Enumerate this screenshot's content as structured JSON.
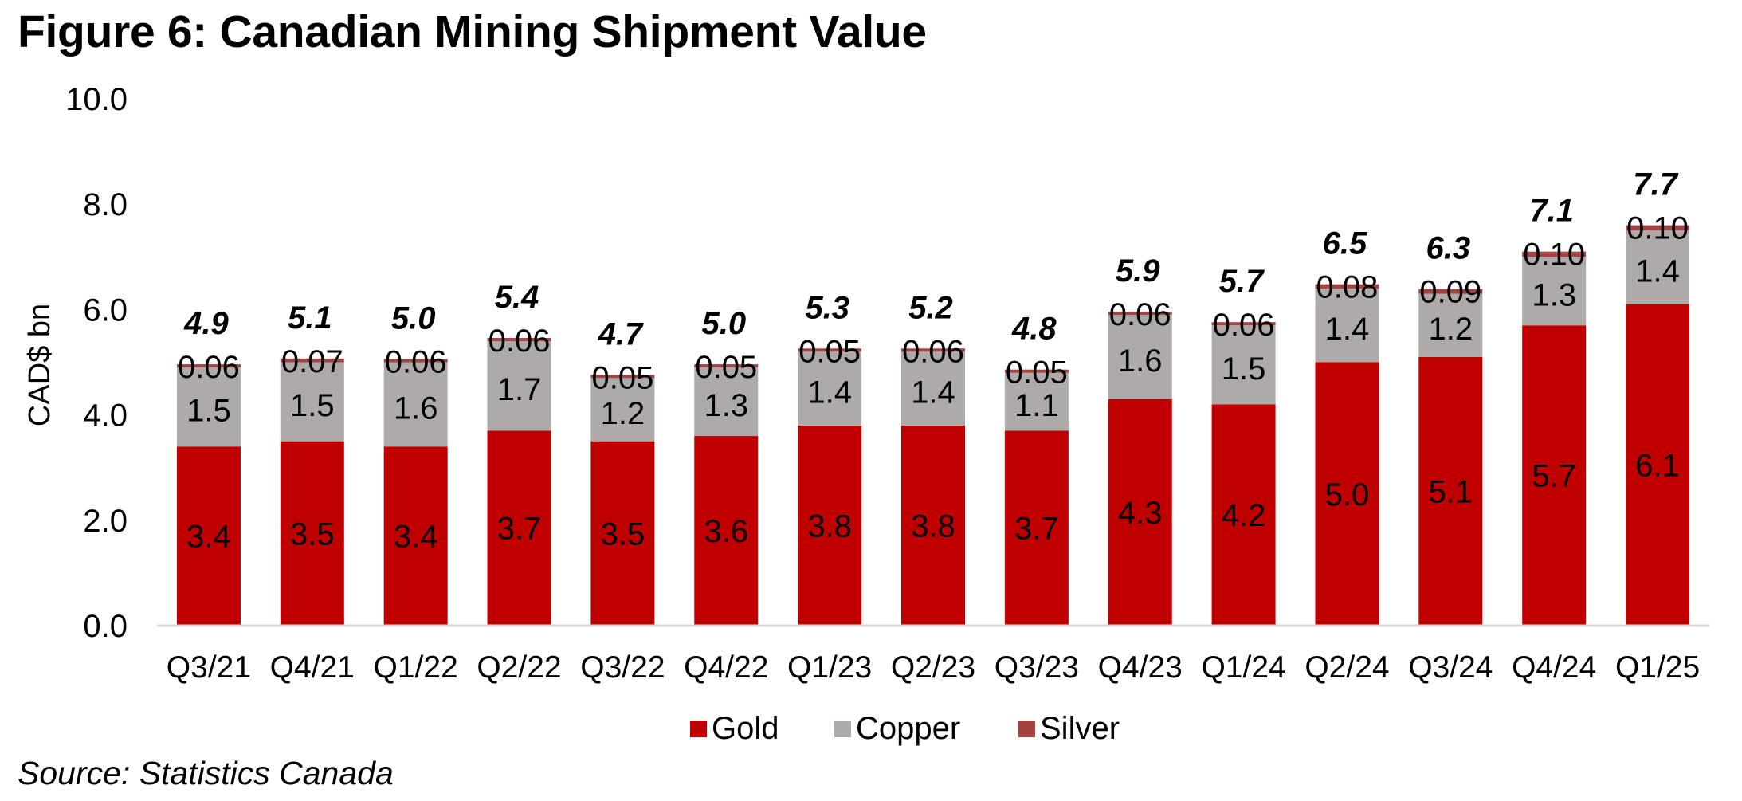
{
  "figure": {
    "title": "Figure 6: Canadian Mining Shipment Value",
    "source": "Source: Statistics Canada"
  },
  "chart_data": {
    "type": "bar",
    "stacked": true,
    "title": "Figure 6: Canadian Mining Shipment Value",
    "xlabel": "",
    "ylabel": "CAD$ bn",
    "ylim": [
      0,
      10
    ],
    "yticks": [
      0,
      2,
      4,
      6,
      8,
      10
    ],
    "ytick_labels": [
      "0.0",
      "2.0",
      "4.0",
      "6.0",
      "8.0",
      "10.0"
    ],
    "grid": false,
    "legend_position": "bottom-center",
    "categories": [
      "Q3/21",
      "Q4/21",
      "Q1/22",
      "Q2/22",
      "Q3/22",
      "Q4/22",
      "Q1/23",
      "Q2/23",
      "Q3/23",
      "Q4/23",
      "Q1/24",
      "Q2/24",
      "Q3/24",
      "Q4/24",
      "Q1/25"
    ],
    "series": [
      {
        "name": "Gold",
        "color": "#C00000",
        "values": [
          3.4,
          3.5,
          3.4,
          3.7,
          3.5,
          3.6,
          3.8,
          3.8,
          3.7,
          4.3,
          4.2,
          5.0,
          5.1,
          5.7,
          6.1
        ],
        "labels": [
          "3.4",
          "3.5",
          "3.4",
          "3.7",
          "3.5",
          "3.6",
          "3.8",
          "3.8",
          "3.7",
          "4.3",
          "4.2",
          "5.0",
          "5.1",
          "5.7",
          "6.1"
        ]
      },
      {
        "name": "Copper",
        "color": "#AEAAAA",
        "values": [
          1.5,
          1.5,
          1.6,
          1.7,
          1.2,
          1.3,
          1.4,
          1.4,
          1.1,
          1.6,
          1.5,
          1.4,
          1.2,
          1.3,
          1.4
        ],
        "labels": [
          "1.5",
          "1.5",
          "1.6",
          "1.7",
          "1.2",
          "1.3",
          "1.4",
          "1.4",
          "1.1",
          "1.6",
          "1.5",
          "1.4",
          "1.2",
          "1.3",
          "1.4"
        ]
      },
      {
        "name": "Silver",
        "color": "#A5413F",
        "values": [
          0.06,
          0.07,
          0.06,
          0.06,
          0.05,
          0.05,
          0.05,
          0.06,
          0.05,
          0.06,
          0.06,
          0.08,
          0.09,
          0.1,
          0.1
        ],
        "labels": [
          "0.06",
          "0.07",
          "0.06",
          "0.06",
          "0.05",
          "0.05",
          "0.05",
          "0.06",
          "0.05",
          "0.06",
          "0.06",
          "0.08",
          "0.09",
          "0.10",
          "0.10"
        ]
      }
    ],
    "totals": [
      4.9,
      5.1,
      5.0,
      5.4,
      4.7,
      5.0,
      5.3,
      5.2,
      4.8,
      5.9,
      5.7,
      6.5,
      6.3,
      7.1,
      7.7
    ],
    "total_labels": [
      "4.9",
      "5.1",
      "5.0",
      "5.4",
      "4.7",
      "5.0",
      "5.3",
      "5.2",
      "4.8",
      "5.9",
      "5.7",
      "6.5",
      "6.3",
      "7.1",
      "7.7"
    ]
  },
  "legend": {
    "items": [
      {
        "label": "Gold",
        "color": "#C00000"
      },
      {
        "label": "Copper",
        "color": "#AEAAAA"
      },
      {
        "label": "Silver",
        "color": "#A5413F"
      }
    ]
  }
}
